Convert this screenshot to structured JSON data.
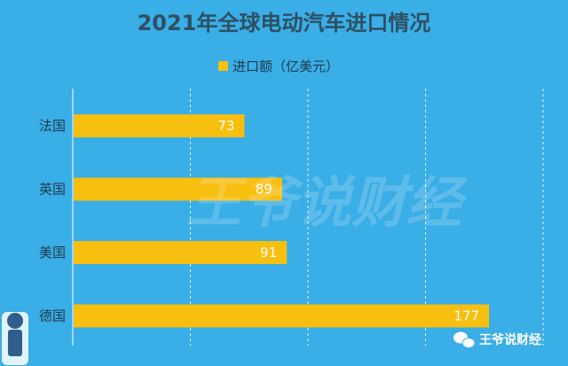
{
  "chart_data": {
    "type": "bar",
    "orientation": "horizontal",
    "title": "2021年全球电动汽车进口情况",
    "categories": [
      "法国",
      "英国",
      "美国",
      "德国"
    ],
    "series": [
      {
        "name": "进口额（亿美元）",
        "values": [
          73,
          89,
          91,
          177
        ]
      }
    ],
    "xlim": [
      0,
      200
    ],
    "grid": "vertical-dashed",
    "legend_position": "top-center",
    "xlabel": "",
    "ylabel": ""
  },
  "watermark": "王爷说财经",
  "brand": {
    "label": "王爷说财经",
    "icon": "wechat-icon"
  },
  "colors": {
    "background": "#3aaee6",
    "bar": "#f7bf0f",
    "grid": "#ffffff",
    "title": "#2f4f63"
  }
}
